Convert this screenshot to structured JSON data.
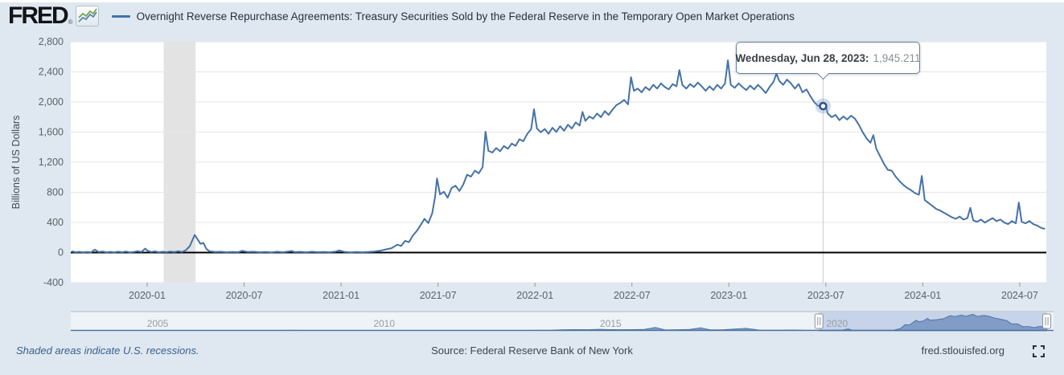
{
  "header": {
    "logo_text": "FRED",
    "logo_reg": "®",
    "title": "Overnight Reverse Repurchase Agreements: Treasury Securities Sold by the Federal Reserve in the Temporary Open Market Operations"
  },
  "tooltip": {
    "date_label": "Wednesday, Jun 28, 2023:",
    "value": "1,945.211"
  },
  "footer": {
    "recession_note": "Shaded areas indicate U.S. recessions.",
    "source": "Source: Federal Reserve Bank of New York",
    "site": "fred.stlouisfed.org"
  },
  "colors": {
    "page_bg": "#dfe8f0",
    "plot_bg": "#ffffff",
    "line": "#4572a7",
    "zero_line": "#000000",
    "gridline": "#e6e6e6",
    "recession": "#e3e3e3",
    "axis_text": "#5a6168",
    "crosshair": "#c8cdd3",
    "halo": "#8ba6cc",
    "marker_stroke": "#2c5388",
    "slider_selected": "#c7d3e9",
    "slider_track": "#eef3f8",
    "slider_fill": "#7e9ac6",
    "slider_stroke": "#49719f",
    "slider_text": "#979da3",
    "slider_topline": "#b6bcc3",
    "tick": "#999999"
  },
  "chart_data": {
    "type": "line",
    "title": "Overnight Reverse Repurchase Agreements: Treasury Securities Sold by the Federal Reserve in the Temporary Open Market Operations",
    "ylabel": "Billions of US Dollars",
    "xlabel": "",
    "grid": "horizontal",
    "legend_position": "top",
    "ylim": [
      -400,
      2800
    ],
    "xlim_t": [
      2019.606,
      2024.637
    ],
    "y_ticks": [
      {
        "v": 2800,
        "label": "2,800"
      },
      {
        "v": 2400,
        "label": "2,400"
      },
      {
        "v": 2000,
        "label": "2,000"
      },
      {
        "v": 1600,
        "label": "1,600"
      },
      {
        "v": 1200,
        "label": "1,200"
      },
      {
        "v": 800,
        "label": "800"
      },
      {
        "v": 400,
        "label": "400"
      },
      {
        "v": 0,
        "label": "0"
      },
      {
        "v": -400,
        "label": "-400"
      }
    ],
    "x_ticks": [
      {
        "t": 2020.0,
        "label": "2020-01"
      },
      {
        "t": 2020.5,
        "label": "2020-07"
      },
      {
        "t": 2021.0,
        "label": "2021-01"
      },
      {
        "t": 2021.5,
        "label": "2021-07"
      },
      {
        "t": 2022.0,
        "label": "2022-01"
      },
      {
        "t": 2022.5,
        "label": "2022-07"
      },
      {
        "t": 2023.0,
        "label": "2023-01"
      },
      {
        "t": 2023.5,
        "label": "2023-07"
      },
      {
        "t": 2024.0,
        "label": "2024-01"
      },
      {
        "t": 2024.5,
        "label": "2024-07"
      }
    ],
    "recession_bands": [
      [
        2020.085,
        2020.25
      ]
    ],
    "highlight": {
      "t": 2023.486,
      "value": 1945.211,
      "date": "Wednesday, Jun 28, 2023",
      "value_label": "1,945.211"
    },
    "series": [
      [
        2019.61,
        18
      ],
      [
        2019.63,
        4
      ],
      [
        2019.65,
        10
      ],
      [
        2019.67,
        3
      ],
      [
        2019.69,
        8
      ],
      [
        2019.71,
        2
      ],
      [
        2019.73,
        38
      ],
      [
        2019.75,
        7
      ],
      [
        2019.77,
        14
      ],
      [
        2019.79,
        3
      ],
      [
        2019.81,
        10
      ],
      [
        2019.83,
        2
      ],
      [
        2019.85,
        12
      ],
      [
        2019.87,
        4
      ],
      [
        2019.89,
        14
      ],
      [
        2019.91,
        3
      ],
      [
        2019.93,
        7
      ],
      [
        2019.95,
        18
      ],
      [
        2019.97,
        10
      ],
      [
        2019.99,
        52
      ],
      [
        2020.0,
        28
      ],
      [
        2020.02,
        7
      ],
      [
        2020.04,
        16
      ],
      [
        2020.06,
        4
      ],
      [
        2020.08,
        11
      ],
      [
        2020.1,
        5
      ],
      [
        2020.12,
        14
      ],
      [
        2020.14,
        6
      ],
      [
        2020.16,
        18
      ],
      [
        2020.18,
        9
      ],
      [
        2020.2,
        32
      ],
      [
        2020.22,
        85
      ],
      [
        2020.245,
        235
      ],
      [
        2020.26,
        175
      ],
      [
        2020.275,
        115
      ],
      [
        2020.29,
        128
      ],
      [
        2020.305,
        50
      ],
      [
        2020.32,
        18
      ],
      [
        2020.35,
        7
      ],
      [
        2020.38,
        11
      ],
      [
        2020.41,
        4
      ],
      [
        2020.44,
        9
      ],
      [
        2020.47,
        5
      ],
      [
        2020.49,
        22
      ],
      [
        2020.52,
        7
      ],
      [
        2020.55,
        11
      ],
      [
        2020.58,
        4
      ],
      [
        2020.61,
        9
      ],
      [
        2020.64,
        3
      ],
      [
        2020.67,
        11
      ],
      [
        2020.7,
        4
      ],
      [
        2020.73,
        15
      ],
      [
        2020.745,
        20
      ],
      [
        2020.76,
        6
      ],
      [
        2020.79,
        10
      ],
      [
        2020.82,
        4
      ],
      [
        2020.85,
        11
      ],
      [
        2020.88,
        5
      ],
      [
        2020.91,
        9
      ],
      [
        2020.94,
        4
      ],
      [
        2020.97,
        12
      ],
      [
        2020.99,
        28
      ],
      [
        2021.02,
        7
      ],
      [
        2021.05,
        3
      ],
      [
        2021.08,
        9
      ],
      [
        2021.11,
        4
      ],
      [
        2021.14,
        8
      ],
      [
        2021.17,
        14
      ],
      [
        2021.2,
        24
      ],
      [
        2021.23,
        42
      ],
      [
        2021.26,
        58
      ],
      [
        2021.29,
        105
      ],
      [
        2021.31,
        88
      ],
      [
        2021.33,
        155
      ],
      [
        2021.35,
        138
      ],
      [
        2021.37,
        225
      ],
      [
        2021.39,
        285
      ],
      [
        2021.41,
        365
      ],
      [
        2021.43,
        448
      ],
      [
        2021.45,
        392
      ],
      [
        2021.47,
        520
      ],
      [
        2021.485,
        742
      ],
      [
        2021.495,
        985
      ],
      [
        2021.51,
        772
      ],
      [
        2021.53,
        808
      ],
      [
        2021.55,
        728
      ],
      [
        2021.57,
        858
      ],
      [
        2021.59,
        888
      ],
      [
        2021.61,
        818
      ],
      [
        2021.63,
        902
      ],
      [
        2021.65,
        1035
      ],
      [
        2021.67,
        1008
      ],
      [
        2021.69,
        1088
      ],
      [
        2021.71,
        1052
      ],
      [
        2021.73,
        1135
      ],
      [
        2021.745,
        1605
      ],
      [
        2021.76,
        1352
      ],
      [
        2021.78,
        1328
      ],
      [
        2021.8,
        1388
      ],
      [
        2021.82,
        1345
      ],
      [
        2021.84,
        1415
      ],
      [
        2021.86,
        1378
      ],
      [
        2021.88,
        1448
      ],
      [
        2021.9,
        1418
      ],
      [
        2021.92,
        1505
      ],
      [
        2021.94,
        1478
      ],
      [
        2021.96,
        1575
      ],
      [
        2021.98,
        1638
      ],
      [
        2021.995,
        1904
      ],
      [
        2022.01,
        1648
      ],
      [
        2022.03,
        1598
      ],
      [
        2022.05,
        1642
      ],
      [
        2022.07,
        1578
      ],
      [
        2022.09,
        1658
      ],
      [
        2022.11,
        1602
      ],
      [
        2022.13,
        1678
      ],
      [
        2022.15,
        1618
      ],
      [
        2022.17,
        1698
      ],
      [
        2022.19,
        1648
      ],
      [
        2022.21,
        1728
      ],
      [
        2022.23,
        1688
      ],
      [
        2022.245,
        1868
      ],
      [
        2022.26,
        1748
      ],
      [
        2022.28,
        1808
      ],
      [
        2022.3,
        1778
      ],
      [
        2022.32,
        1848
      ],
      [
        2022.34,
        1798
      ],
      [
        2022.36,
        1878
      ],
      [
        2022.38,
        1828
      ],
      [
        2022.4,
        1898
      ],
      [
        2022.42,
        1958
      ],
      [
        2022.44,
        1988
      ],
      [
        2022.46,
        2028
      ],
      [
        2022.48,
        1968
      ],
      [
        2022.495,
        2330
      ],
      [
        2022.51,
        2148
      ],
      [
        2022.53,
        2178
      ],
      [
        2022.55,
        2128
      ],
      [
        2022.57,
        2198
      ],
      [
        2022.59,
        2158
      ],
      [
        2022.61,
        2228
      ],
      [
        2022.63,
        2178
      ],
      [
        2022.65,
        2248
      ],
      [
        2022.67,
        2198
      ],
      [
        2022.69,
        2168
      ],
      [
        2022.71,
        2238
      ],
      [
        2022.73,
        2208
      ],
      [
        2022.745,
        2425
      ],
      [
        2022.76,
        2228
      ],
      [
        2022.78,
        2178
      ],
      [
        2022.8,
        2238
      ],
      [
        2022.82,
        2198
      ],
      [
        2022.84,
        2258
      ],
      [
        2022.86,
        2208
      ],
      [
        2022.88,
        2148
      ],
      [
        2022.9,
        2208
      ],
      [
        2022.92,
        2158
      ],
      [
        2022.94,
        2228
      ],
      [
        2022.96,
        2178
      ],
      [
        2022.98,
        2248
      ],
      [
        2022.995,
        2554
      ],
      [
        2023.01,
        2228
      ],
      [
        2023.03,
        2188
      ],
      [
        2023.05,
        2248
      ],
      [
        2023.07,
        2198
      ],
      [
        2023.09,
        2158
      ],
      [
        2023.11,
        2218
      ],
      [
        2023.13,
        2168
      ],
      [
        2023.15,
        2228
      ],
      [
        2023.17,
        2178
      ],
      [
        2023.19,
        2118
      ],
      [
        2023.21,
        2198
      ],
      [
        2023.23,
        2268
      ],
      [
        2023.245,
        2375
      ],
      [
        2023.26,
        2278
      ],
      [
        2023.28,
        2228
      ],
      [
        2023.3,
        2298
      ],
      [
        2023.32,
        2248
      ],
      [
        2023.34,
        2178
      ],
      [
        2023.36,
        2238
      ],
      [
        2023.38,
        2128
      ],
      [
        2023.4,
        2168
      ],
      [
        2023.42,
        2078
      ],
      [
        2023.44,
        1998
      ],
      [
        2023.46,
        1948
      ],
      [
        2023.486,
        1945.211
      ],
      [
        2023.495,
        1978
      ],
      [
        2023.51,
        1848
      ],
      [
        2023.53,
        1798
      ],
      [
        2023.55,
        1828
      ],
      [
        2023.57,
        1758
      ],
      [
        2023.59,
        1808
      ],
      [
        2023.61,
        1768
      ],
      [
        2023.63,
        1818
      ],
      [
        2023.65,
        1778
      ],
      [
        2023.67,
        1698
      ],
      [
        2023.69,
        1598
      ],
      [
        2023.71,
        1518
      ],
      [
        2023.73,
        1458
      ],
      [
        2023.745,
        1560
      ],
      [
        2023.76,
        1378
      ],
      [
        2023.78,
        1278
      ],
      [
        2023.8,
        1178
      ],
      [
        2023.82,
        1098
      ],
      [
        2023.84,
        1088
      ],
      [
        2023.86,
        1008
      ],
      [
        2023.88,
        948
      ],
      [
        2023.9,
        898
      ],
      [
        2023.92,
        858
      ],
      [
        2023.94,
        828
      ],
      [
        2023.96,
        788
      ],
      [
        2023.98,
        768
      ],
      [
        2023.995,
        1018
      ],
      [
        2024.01,
        698
      ],
      [
        2024.03,
        658
      ],
      [
        2024.05,
        618
      ],
      [
        2024.07,
        578
      ],
      [
        2024.09,
        558
      ],
      [
        2024.11,
        528
      ],
      [
        2024.13,
        498
      ],
      [
        2024.15,
        468
      ],
      [
        2024.17,
        448
      ],
      [
        2024.19,
        478
      ],
      [
        2024.21,
        438
      ],
      [
        2024.23,
        458
      ],
      [
        2024.245,
        594
      ],
      [
        2024.26,
        428
      ],
      [
        2024.28,
        408
      ],
      [
        2024.3,
        438
      ],
      [
        2024.32,
        398
      ],
      [
        2024.34,
        428
      ],
      [
        2024.36,
        458
      ],
      [
        2024.38,
        418
      ],
      [
        2024.4,
        438
      ],
      [
        2024.42,
        398
      ],
      [
        2024.44,
        378
      ],
      [
        2024.46,
        418
      ],
      [
        2024.48,
        388
      ],
      [
        2024.495,
        665
      ],
      [
        2024.51,
        408
      ],
      [
        2024.53,
        388
      ],
      [
        2024.55,
        418
      ],
      [
        2024.57,
        378
      ],
      [
        2024.59,
        358
      ],
      [
        2024.61,
        328
      ],
      [
        2024.63,
        315
      ]
    ],
    "slider": {
      "xlim_t": [
        2003.08,
        2024.78
      ],
      "selected_t": [
        2019.6,
        2024.63
      ],
      "year_ticks": [
        {
          "t": 2005,
          "label": "2005"
        },
        {
          "t": 2010,
          "label": "2010"
        },
        {
          "t": 2015,
          "label": "2015"
        },
        {
          "t": 2020,
          "label": "2020"
        }
      ],
      "series": [
        [
          2003.1,
          2
        ],
        [
          2003.5,
          3
        ],
        [
          2004,
          2
        ],
        [
          2004.5,
          4
        ],
        [
          2005,
          3
        ],
        [
          2005.5,
          2
        ],
        [
          2006,
          4
        ],
        [
          2006.5,
          3
        ],
        [
          2007,
          5
        ],
        [
          2007.5,
          4
        ],
        [
          2008,
          8
        ],
        [
          2008.5,
          6
        ],
        [
          2009,
          3
        ],
        [
          2009.5,
          2
        ],
        [
          2010,
          3
        ],
        [
          2010.5,
          2
        ],
        [
          2011,
          2
        ],
        [
          2011.5,
          2
        ],
        [
          2012,
          2
        ],
        [
          2012.5,
          2
        ],
        [
          2013,
          4
        ],
        [
          2013.7,
          40
        ],
        [
          2013.9,
          90
        ],
        [
          2014.2,
          130
        ],
        [
          2014.5,
          110
        ],
        [
          2014.745,
          180
        ],
        [
          2014.9,
          140
        ],
        [
          2015.2,
          110
        ],
        [
          2015.5,
          130
        ],
        [
          2015.745,
          160
        ],
        [
          2015.99,
          470
        ],
        [
          2016.2,
          70
        ],
        [
          2016.5,
          110
        ],
        [
          2016.745,
          150
        ],
        [
          2016.99,
          400
        ],
        [
          2017.2,
          90
        ],
        [
          2017.5,
          120
        ],
        [
          2017.99,
          330
        ],
        [
          2018.3,
          40
        ],
        [
          2018.7,
          20
        ],
        [
          2018.99,
          60
        ],
        [
          2019.3,
          15
        ],
        [
          2019.6,
          10
        ],
        [
          2019.745,
          30
        ],
        [
          2019.99,
          50
        ],
        [
          2020.1,
          10
        ],
        [
          2020.245,
          235
        ],
        [
          2020.35,
          15
        ],
        [
          2020.6,
          8
        ],
        [
          2020.9,
          8
        ],
        [
          2021.1,
          10
        ],
        [
          2021.25,
          40
        ],
        [
          2021.4,
          300
        ],
        [
          2021.5,
          900
        ],
        [
          2021.6,
          880
        ],
        [
          2021.745,
          1605
        ],
        [
          2021.8,
          1380
        ],
        [
          2021.9,
          1470
        ],
        [
          2021.995,
          1904
        ],
        [
          2022.05,
          1620
        ],
        [
          2022.2,
          1700
        ],
        [
          2022.35,
          1850
        ],
        [
          2022.495,
          2330
        ],
        [
          2022.6,
          2180
        ],
        [
          2022.745,
          2425
        ],
        [
          2022.85,
          2230
        ],
        [
          2022.995,
          2554
        ],
        [
          2023.1,
          2210
        ],
        [
          2023.245,
          2375
        ],
        [
          2023.35,
          2230
        ],
        [
          2023.486,
          1945
        ],
        [
          2023.6,
          1790
        ],
        [
          2023.745,
          1560
        ],
        [
          2023.85,
          1050
        ],
        [
          2023.995,
          1018
        ],
        [
          2024.1,
          600
        ],
        [
          2024.245,
          594
        ],
        [
          2024.35,
          440
        ],
        [
          2024.495,
          665
        ],
        [
          2024.55,
          400
        ],
        [
          2024.63,
          315
        ]
      ]
    }
  }
}
